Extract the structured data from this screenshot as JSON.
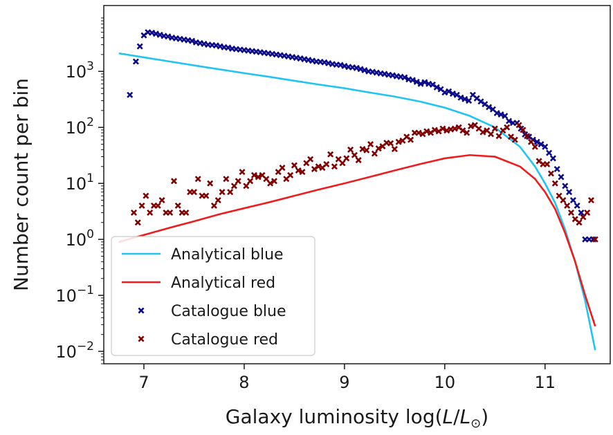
{
  "chart_data": {
    "type": "scatter",
    "title": "",
    "xlabel_prefix": "Galaxy luminosity log(",
    "xlabel_L": "L",
    "xlabel_sep": "/",
    "xlabel_Lsun": "L",
    "xlabel_sun": "⊙",
    "xlabel_suffix": ")",
    "ylabel": "Number count per bin",
    "x_scale": "linear",
    "y_scale": "log",
    "xlim": [
      6.6,
      11.65
    ],
    "ylim": [
      0.006,
      15000
    ],
    "x_ticks": [
      7,
      8,
      9,
      10,
      11
    ],
    "x_tick_labels": [
      "7",
      "8",
      "9",
      "10",
      "11"
    ],
    "y_ticks": [
      0.01,
      0.1,
      1,
      10,
      100,
      1000
    ],
    "y_tick_labels": [
      {
        "base": "10",
        "exp": "−2"
      },
      {
        "base": "10",
        "exp": "−1"
      },
      {
        "base": "10",
        "exp": "0"
      },
      {
        "base": "10",
        "exp": "1"
      },
      {
        "base": "10",
        "exp": "2"
      },
      {
        "base": "10",
        "exp": "3"
      }
    ],
    "grid": false,
    "legend_position": "lower-left",
    "series": [
      {
        "name": "Analytical blue",
        "kind": "line",
        "color": "#1fc4f4",
        "x": [
          6.75,
          7.0,
          7.25,
          7.5,
          7.75,
          8.0,
          8.25,
          8.5,
          8.75,
          9.0,
          9.25,
          9.5,
          9.75,
          10.0,
          10.25,
          10.5,
          10.75,
          10.9,
          11.0,
          11.1,
          11.2,
          11.3,
          11.4,
          11.5
        ],
        "y": [
          2100,
          1780,
          1510,
          1280,
          1090,
          930,
          800,
          680,
          580,
          500,
          420,
          355,
          290,
          225,
          160,
          100,
          45,
          20,
          10,
          4.5,
          1.5,
          0.4,
          0.08,
          0.0105
        ]
      },
      {
        "name": "Analytical red",
        "kind": "line",
        "color": "#f01c1c",
        "x": [
          6.75,
          7.0,
          7.25,
          7.5,
          7.75,
          8.0,
          8.25,
          8.5,
          8.75,
          9.0,
          9.25,
          9.5,
          9.75,
          10.0,
          10.25,
          10.5,
          10.75,
          10.9,
          11.0,
          11.1,
          11.2,
          11.3,
          11.4,
          11.5
        ],
        "y": [
          0.9,
          1.2,
          1.6,
          2.1,
          2.8,
          3.6,
          4.6,
          6.0,
          7.8,
          10.0,
          13.0,
          17.0,
          22.0,
          28.0,
          32.0,
          30.0,
          20.0,
          12.0,
          7.0,
          3.5,
          1.3,
          0.4,
          0.1,
          0.028
        ]
      },
      {
        "name": "Catalogue blue",
        "kind": "scatter",
        "color": "#0a0a8a",
        "x": [
          6.86,
          6.92,
          6.96,
          7.0,
          7.04,
          7.08,
          7.12,
          7.16,
          7.2,
          7.24,
          7.28,
          7.32,
          7.36,
          7.4,
          7.44,
          7.48,
          7.52,
          7.56,
          7.6,
          7.64,
          7.68,
          7.72,
          7.76,
          7.8,
          7.84,
          7.88,
          7.92,
          7.96,
          8.0,
          8.04,
          8.08,
          8.12,
          8.16,
          8.2,
          8.24,
          8.28,
          8.32,
          8.36,
          8.4,
          8.44,
          8.48,
          8.52,
          8.56,
          8.6,
          8.64,
          8.68,
          8.72,
          8.76,
          8.8,
          8.84,
          8.88,
          8.92,
          8.96,
          9.0,
          9.04,
          9.08,
          9.12,
          9.16,
          9.2,
          9.24,
          9.28,
          9.32,
          9.36,
          9.4,
          9.44,
          9.48,
          9.52,
          9.56,
          9.6,
          9.64,
          9.68,
          9.72,
          9.76,
          9.8,
          9.84,
          9.88,
          9.92,
          9.96,
          10.0,
          10.04,
          10.08,
          10.12,
          10.16,
          10.2,
          10.24,
          10.28,
          10.32,
          10.36,
          10.4,
          10.44,
          10.48,
          10.52,
          10.56,
          10.6,
          10.64,
          10.68,
          10.72,
          10.76,
          10.8,
          10.84,
          10.88,
          10.92,
          10.96,
          11.0,
          11.04,
          11.08,
          11.12,
          11.16,
          11.2,
          11.24,
          11.28,
          11.32,
          11.36,
          11.4,
          11.44,
          11.48
        ],
        "y": [
          380,
          1500,
          2800,
          4400,
          5000,
          4900,
          4700,
          4500,
          4300,
          4200,
          4000,
          3900,
          3800,
          3700,
          3600,
          3500,
          3300,
          3200,
          3100,
          3000,
          2950,
          2900,
          2800,
          2700,
          2650,
          2550,
          2500,
          2450,
          2400,
          2350,
          2300,
          2250,
          2200,
          2150,
          2100,
          2050,
          2000,
          1950,
          1900,
          1850,
          1800,
          1750,
          1700,
          1650,
          1600,
          1550,
          1500,
          1480,
          1450,
          1400,
          1350,
          1320,
          1300,
          1250,
          1200,
          1180,
          1150,
          1100,
          1050,
          1000,
          980,
          950,
          920,
          900,
          870,
          850,
          820,
          800,
          780,
          720,
          700,
          650,
          600,
          640,
          600,
          580,
          520,
          480,
          420,
          440,
          400,
          380,
          340,
          320,
          300,
          380,
          330,
          290,
          260,
          230,
          210,
          180,
          170,
          160,
          130,
          120,
          120,
          95,
          75,
          68,
          60,
          55,
          50,
          45,
          35,
          28,
          18,
          13,
          9,
          7,
          5,
          4,
          3,
          1,
          1,
          1
        ]
      },
      {
        "name": "Catalogue red",
        "kind": "scatter",
        "color": "#800000",
        "x": [
          6.9,
          6.94,
          6.98,
          7.02,
          7.06,
          7.1,
          7.14,
          7.18,
          7.22,
          7.26,
          7.3,
          7.34,
          7.38,
          7.42,
          7.46,
          7.5,
          7.54,
          7.58,
          7.62,
          7.66,
          7.7,
          7.74,
          7.78,
          7.82,
          7.86,
          7.9,
          7.94,
          7.98,
          8.02,
          8.06,
          8.1,
          8.14,
          8.18,
          8.22,
          8.26,
          8.3,
          8.34,
          8.38,
          8.42,
          8.46,
          8.5,
          8.54,
          8.58,
          8.62,
          8.66,
          8.7,
          8.74,
          8.78,
          8.82,
          8.86,
          8.9,
          8.94,
          8.98,
          9.02,
          9.06,
          9.1,
          9.14,
          9.18,
          9.22,
          9.26,
          9.3,
          9.34,
          9.38,
          9.42,
          9.46,
          9.5,
          9.54,
          9.58,
          9.62,
          9.66,
          9.7,
          9.74,
          9.78,
          9.82,
          9.86,
          9.9,
          9.94,
          9.98,
          10.02,
          10.06,
          10.1,
          10.14,
          10.18,
          10.22,
          10.26,
          10.3,
          10.34,
          10.38,
          10.42,
          10.46,
          10.5,
          10.54,
          10.58,
          10.62,
          10.66,
          10.7,
          10.74,
          10.78,
          10.82,
          10.86,
          10.9,
          10.94,
          10.98,
          11.02,
          11.06,
          11.1,
          11.14,
          11.18,
          11.22,
          11.26,
          11.3,
          11.34,
          11.38,
          11.42,
          11.46,
          11.5
        ],
        "y": [
          3,
          2,
          4,
          6,
          3,
          4,
          4,
          5,
          3,
          3,
          11,
          4,
          3,
          3,
          7,
          7,
          12,
          6,
          6,
          10,
          4,
          5,
          7,
          12,
          7,
          9,
          11,
          16,
          9,
          11,
          14,
          13,
          14,
          12,
          10,
          11,
          16,
          19,
          12,
          14,
          21,
          17,
          16,
          23,
          27,
          18,
          20,
          19,
          22,
          33,
          20,
          27,
          23,
          28,
          40,
          32,
          26,
          41,
          39,
          50,
          34,
          42,
          46,
          53,
          52,
          41,
          55,
          58,
          68,
          60,
          80,
          80,
          76,
          85,
          80,
          90,
          85,
          95,
          88,
          92,
          95,
          100,
          88,
          80,
          105,
          110,
          95,
          82,
          88,
          76,
          95,
          70,
          88,
          100,
          68,
          60,
          110,
          90,
          70,
          55,
          45,
          25,
          22,
          22,
          15,
          10,
          6,
          5,
          4,
          3,
          2.3,
          2,
          2.5,
          3,
          5,
          1
        ]
      }
    ]
  }
}
